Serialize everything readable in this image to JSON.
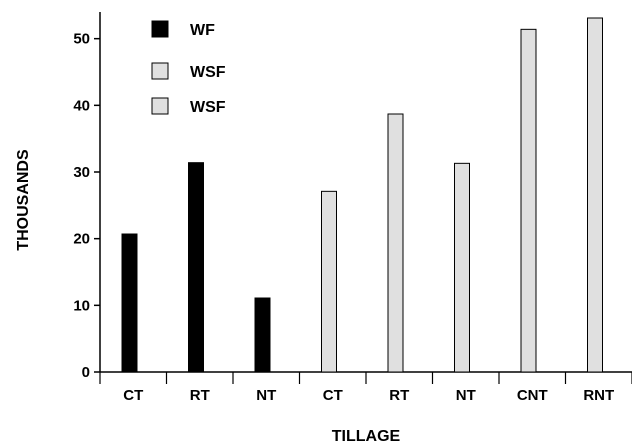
{
  "chart_data": {
    "type": "bar",
    "xlabel": "TILLAGE",
    "ylabel": "THOUSANDS",
    "ylim": [
      0,
      54
    ],
    "yticks": [
      0,
      10,
      20,
      30,
      40,
      50
    ],
    "categories": [
      "CT",
      "RT",
      "NT",
      "CT",
      "RT",
      "NT",
      "CNT",
      "RNT"
    ],
    "series": [
      {
        "name": "WF",
        "color": "#000000",
        "values": [
          20.7,
          31.4,
          11.1,
          null,
          null,
          null,
          null,
          null
        ]
      },
      {
        "name": "WSF",
        "color": "#e0e0e0",
        "values": [
          null,
          null,
          null,
          27.1,
          38.7,
          31.3,
          51.4,
          53.1
        ]
      }
    ],
    "legend": {
      "position": "top-left",
      "entries": [
        {
          "label": "WF",
          "color": "#000000"
        },
        {
          "label": "WSF",
          "color": "#e0e0e0"
        },
        {
          "label": "WSF",
          "color": "#e0e0e0"
        }
      ]
    },
    "grid": false
  }
}
